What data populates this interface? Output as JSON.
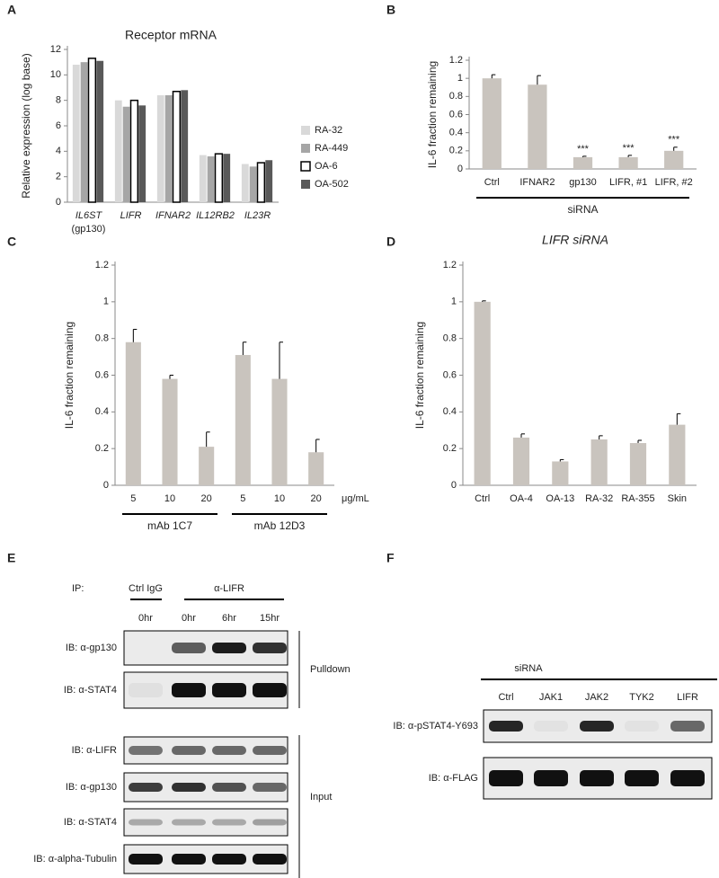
{
  "chart_data": [
    {
      "panel": "A",
      "type": "bar",
      "title": "Receptor mRNA",
      "ylabel": "Relative expression (log base)",
      "categories": [
        "IL6ST",
        "LIFR",
        "IFNAR2",
        "IL12RB2",
        "IL23R"
      ],
      "annotations": [
        "(gp130)"
      ],
      "series": [
        {
          "name": "RA-32",
          "color": "#d9d9d9",
          "values": [
            10.8,
            8.0,
            8.4,
            3.7,
            3.0
          ]
        },
        {
          "name": "RA-449",
          "color": "#a6a6a6",
          "values": [
            11.0,
            7.5,
            8.4,
            3.6,
            2.8
          ]
        },
        {
          "name": "OA-6",
          "color": "#ffffff",
          "values": [
            11.3,
            8.0,
            8.7,
            3.8,
            3.1
          ]
        },
        {
          "name": "OA-502",
          "color": "#595959",
          "values": [
            11.1,
            7.6,
            8.8,
            3.8,
            3.3
          ]
        }
      ],
      "ylim": [
        0,
        12
      ],
      "yticks": [
        0,
        2,
        4,
        6,
        8,
        10,
        12
      ]
    },
    {
      "panel": "B",
      "type": "bar",
      "ylabel": "IL-6 fraction remaining",
      "categories": [
        "Ctrl",
        "IFNAR2",
        "gp130",
        "LIFR, #1",
        "LIFR, #2"
      ],
      "values": [
        1.0,
        0.93,
        0.13,
        0.13,
        0.2
      ],
      "errors": [
        0.04,
        0.1,
        0.01,
        0.02,
        0.04
      ],
      "significance": [
        null,
        null,
        "***",
        "***",
        "***"
      ],
      "groups": [
        "siRNA"
      ],
      "color": "#c9c4be",
      "ylim": [
        0,
        1.2
      ],
      "yticks": [
        0,
        0.2,
        0.4,
        0.6,
        0.8,
        1,
        1.2
      ]
    },
    {
      "panel": "C",
      "type": "bar",
      "ylabel": "IL-6 fraction remaining",
      "categories": [
        "5",
        "10",
        "20",
        "5",
        "10",
        "20"
      ],
      "unit": "μg/mL",
      "values": [
        0.78,
        0.58,
        0.21,
        0.71,
        0.58,
        0.18
      ],
      "errors": [
        0.07,
        0.02,
        0.08,
        0.07,
        0.2,
        0.07
      ],
      "groups": [
        "mAb 1C7",
        "mAb 12D3"
      ],
      "color": "#c9c4be",
      "ylim": [
        0,
        1.2
      ],
      "yticks": [
        0,
        0.2,
        0.4,
        0.6,
        0.8,
        1,
        1.2
      ]
    },
    {
      "panel": "D",
      "type": "bar",
      "title": "LIFR siRNA",
      "ylabel": "IL-6 fraction remaining",
      "categories": [
        "Ctrl",
        "OA-4",
        "OA-13",
        "RA-32",
        "RA-355",
        "Skin"
      ],
      "values": [
        1.0,
        0.26,
        0.13,
        0.25,
        0.23,
        0.33
      ],
      "errors": [
        0.005,
        0.02,
        0.01,
        0.02,
        0.015,
        0.06
      ],
      "color": "#c9c4be",
      "ylim": [
        0,
        1.2
      ],
      "yticks": [
        0,
        0.2,
        0.4,
        0.6,
        0.8,
        1,
        1.2
      ]
    }
  ],
  "blot_e": {
    "panel": "E",
    "ip_label": "IP:",
    "groups": [
      "Ctrl IgG",
      "α-LIFR"
    ],
    "lanes": [
      "0hr",
      "0hr",
      "6hr",
      "15hr"
    ],
    "sections": [
      {
        "name": "Pulldown",
        "rows": [
          "IB: α-gp130",
          "IB: α-STAT4"
        ]
      },
      {
        "name": "Input",
        "rows": [
          "IB: α-LIFR",
          "IB: α-gp130",
          "IB: α-STAT4",
          "IB: α-alpha-Tubulin"
        ]
      }
    ]
  },
  "blot_f": {
    "panel": "F",
    "group": "siRNA",
    "lanes": [
      "Ctrl",
      "JAK1",
      "JAK2",
      "TYK2",
      "LIFR"
    ],
    "rows": [
      "IB: α-pSTAT4-Y693",
      "IB: α-FLAG"
    ]
  }
}
